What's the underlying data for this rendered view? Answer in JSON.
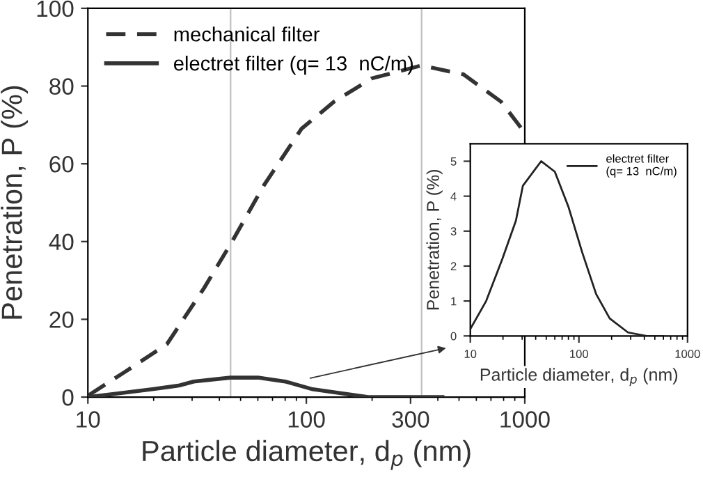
{
  "chart_data": [
    {
      "type": "line",
      "xlabel": "Particle diameter, d$_{p}$ (nm)",
      "ylabel": "Penetration, P (%)",
      "log": "x",
      "xlim": [
        10,
        1000
      ],
      "ylim": [
        0,
        100
      ],
      "xticks": [
        10,
        100,
        300,
        1000
      ],
      "yticks": [
        0,
        20,
        40,
        60,
        80,
        100
      ],
      "legend": "top left",
      "grid": false,
      "series": [
        {
          "name": "mechanical filter",
          "color": "#333333",
          "line_style": "dashed",
          "x": [
            10.1,
            14.8,
            23,
            34,
            45.7,
            64,
            95,
            134,
            200,
            337,
            524,
            778,
            1000
          ],
          "values": [
            0.5,
            6.5,
            13.6,
            28,
            40,
            54.5,
            69,
            76,
            82,
            85.3,
            83,
            76,
            68
          ]
        },
        {
          "name": "electret filter (q= 13  nC/m)",
          "color": "#333333",
          "line_style": "solid",
          "x": [
            10,
            14,
            19.7,
            26.3,
            30.5,
            44.9,
            60,
            80,
            107,
            144,
            192,
            283,
            420
          ],
          "values": [
            0,
            1,
            2,
            3,
            4,
            5,
            5,
            4,
            2,
            1,
            0,
            0,
            0
          ]
        }
      ],
      "ref_lines": [
        {
          "axis": "x",
          "value": 337,
          "color": "#c0c0c0"
        },
        {
          "axis": "x",
          "value": 45,
          "color": "#c0c0c0"
        }
      ]
    },
    {
      "type": "line",
      "xlabel": "Particle diameter, d$_{p}$ (nm)",
      "ylabel": "Penetration, P (%)",
      "log": "x",
      "xlim": [
        10,
        1000
      ],
      "ylim": [
        0,
        5.5
      ],
      "xticks": [
        10,
        100,
        1000
      ],
      "yticks": [
        0,
        1,
        2,
        3,
        4,
        5
      ],
      "legend": "top right",
      "grid": false,
      "series": [
        {
          "name": "electret filter\n(q= 13  nC/m)",
          "color": "#222222",
          "line_style": "solid",
          "x": [
            10,
            14,
            19.7,
            26.3,
            30.5,
            44.9,
            60,
            80,
            107,
            144,
            192,
            283,
            420,
            600
          ],
          "values": [
            0.2,
            1.0,
            2.2,
            3.3,
            4.3,
            5.0,
            4.7,
            3.7,
            2.4,
            1.2,
            0.5,
            0.1,
            0.0,
            0.0
          ]
        }
      ]
    }
  ]
}
